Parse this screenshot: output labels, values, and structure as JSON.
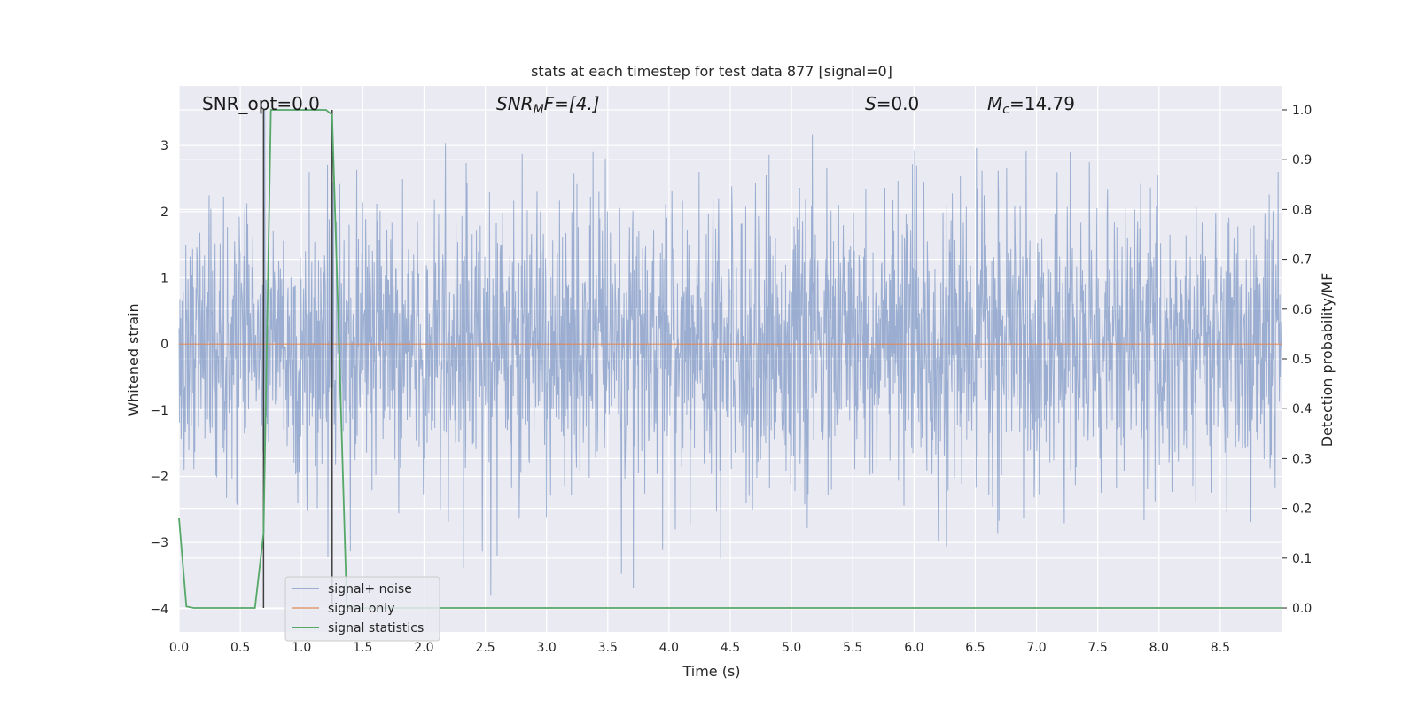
{
  "chart_data": {
    "type": "line",
    "title": "stats at each timestep for test data 877 [signal=0]",
    "xlabel": "Time (s)",
    "ylabel": "Whitened strain",
    "y2label": "Detection probability/MF",
    "xlim": [
      0.0,
      9.0
    ],
    "ylim": [
      -4.35,
      3.9
    ],
    "y2lim": [
      -0.048,
      1.048
    ],
    "x_ticks": [
      "0.0",
      "0.5",
      "1.0",
      "1.5",
      "2.0",
      "2.5",
      "3.0",
      "3.5",
      "4.0",
      "4.5",
      "5.0",
      "5.5",
      "6.0",
      "6.5",
      "7.0",
      "7.5",
      "8.0",
      "8.5"
    ],
    "y_ticks": [
      "3",
      "2",
      "1",
      "0",
      "−1",
      "−2",
      "−3",
      "−4"
    ],
    "y2_ticks": [
      "1.0",
      "0.9",
      "0.8",
      "0.7",
      "0.6",
      "0.5",
      "0.4",
      "0.3",
      "0.2",
      "0.1",
      "0.0"
    ],
    "grid": true,
    "legend_placement": "lower-left",
    "series": [
      {
        "name": "signal+ noise",
        "axis": "left",
        "color": "#4c72b0",
        "description_values": "noise",
        "typical_range": [
          -2.0,
          2.0
        ],
        "extremes": [
          -4.0,
          3.55
        ]
      },
      {
        "name": "signal only",
        "axis": "left",
        "color": "#dd8452",
        "x": [
          0.0,
          9.0
        ],
        "y": [
          0.0,
          0.0
        ]
      },
      {
        "name": "signal statistics",
        "axis": "right",
        "color": "#55a868",
        "x": [
          0.0,
          0.06,
          0.12,
          0.62,
          0.69,
          0.75,
          1.0,
          1.2,
          1.25,
          1.31,
          1.37,
          1.5,
          9.0
        ],
        "y": [
          0.18,
          0.003,
          0.0,
          0.0,
          0.15,
          1.0,
          1.0,
          1.0,
          0.99,
          0.5,
          0.0,
          0.0,
          0.0
        ]
      }
    ],
    "vlines": [
      0.69,
      1.25
    ],
    "annotations": {
      "snr_opt": "SNR_opt=0.0",
      "snr_mf_base": "SNR",
      "snr_mf_sub": "M",
      "snr_mf_rest": "F=[4.]",
      "s_label": "S",
      "s_rest": "=0.0",
      "mc_base": "M",
      "mc_sub": "c",
      "mc_rest": "=14.79"
    }
  },
  "colors": {
    "plot_bg": "#eaeaf2",
    "grid": "#ffffff",
    "vline": "#404040"
  }
}
